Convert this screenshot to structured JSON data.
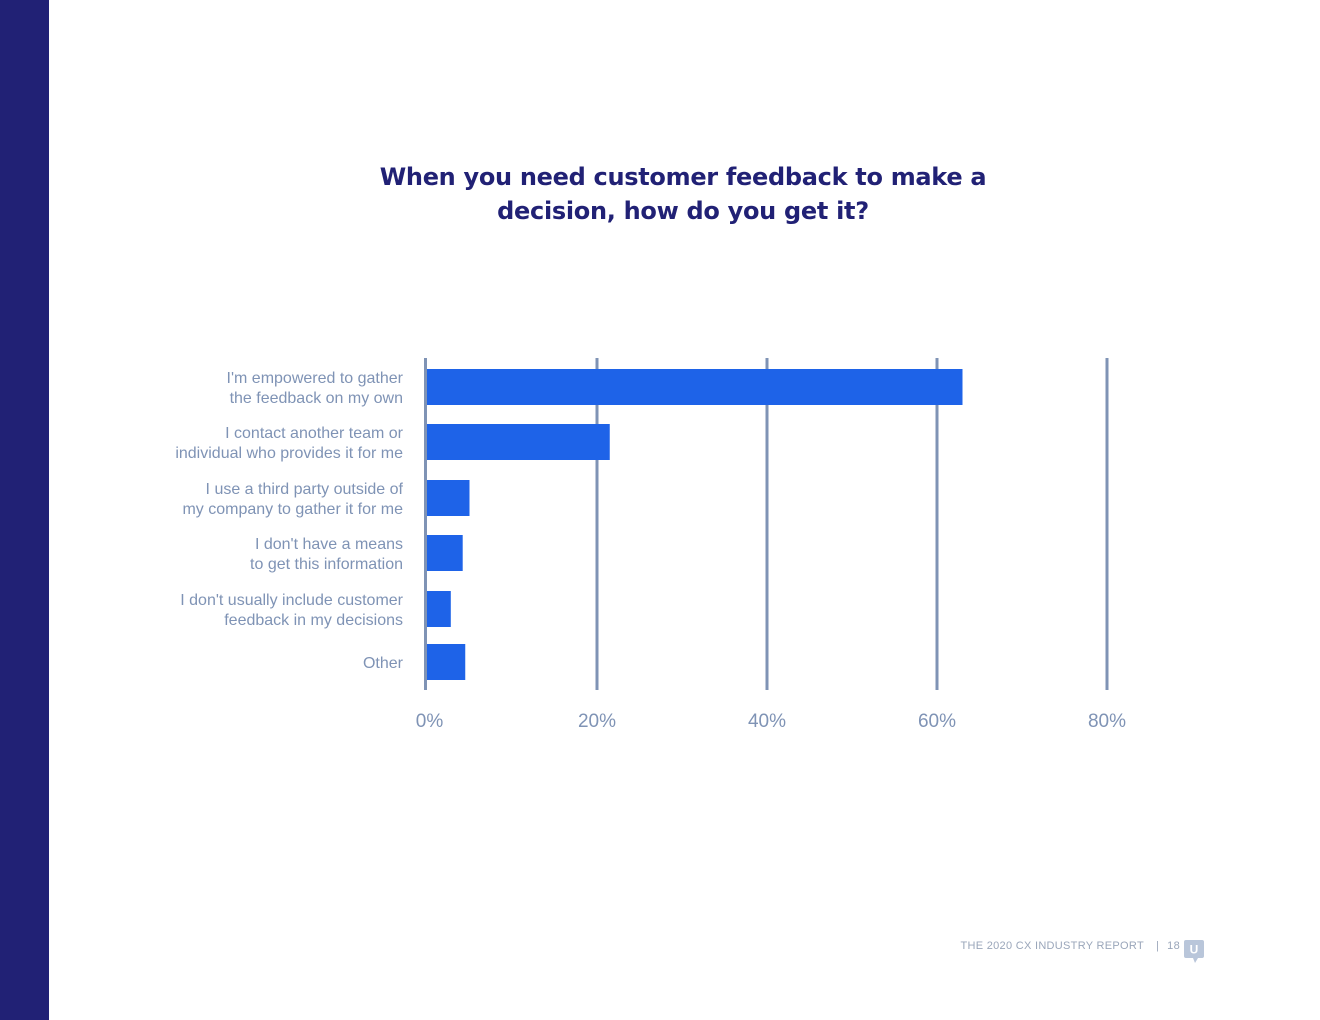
{
  "colors": {
    "sidebar": "#212175",
    "title": "#212175",
    "bar": "#1E63E8",
    "grid": "#7F93B5",
    "label": "#7F93B5",
    "footer": "#9AA6BA"
  },
  "chart_data": {
    "type": "bar",
    "orientation": "horizontal",
    "title": "When you need customer feedback to make a decision, how do you get it?",
    "title_lines": [
      "When you need customer feedback to make a",
      "decision, how do you get it?"
    ],
    "categories": [
      [
        "I'm empowered to gather",
        "the feedback on my own"
      ],
      [
        "I contact another team or",
        "individual who provides it for me"
      ],
      [
        "I use a third party outside of",
        "my company to gather it for me"
      ],
      [
        "I don't have a means",
        "to get this information"
      ],
      [
        "I don't usually include customer",
        "feedback in my decisions"
      ],
      [
        "Other"
      ]
    ],
    "values": [
      63,
      21.5,
      5,
      4.2,
      2.8,
      4.5
    ],
    "xlim": [
      0,
      80
    ],
    "ticks": [
      0,
      20,
      40,
      60,
      80
    ],
    "tick_labels": [
      "0%",
      "20%",
      "40%",
      "60%",
      "80%"
    ],
    "grid": true,
    "legend": "none"
  },
  "footer": {
    "report": "THE 2020 CX INDUSTRY REPORT",
    "separator": "|",
    "page": "18"
  },
  "logo": {
    "icon": "u-speech-bubble-icon",
    "letter": "U"
  }
}
